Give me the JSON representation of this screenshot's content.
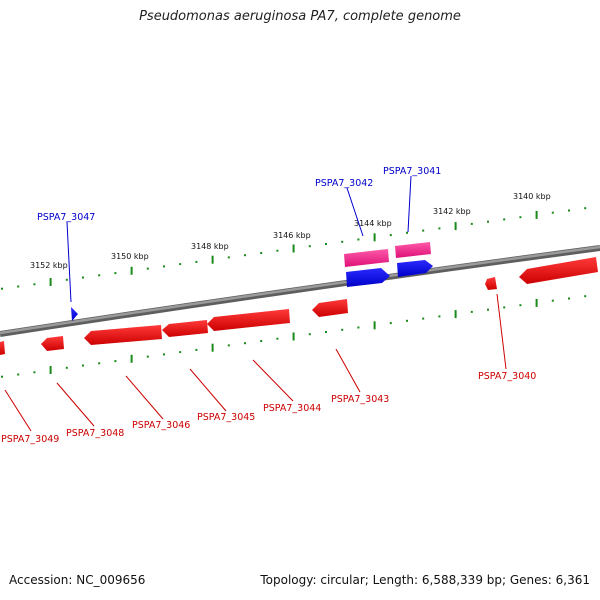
{
  "title": "Pseudomonas aeruginosa PA7, complete genome",
  "accession": "Accession: NC_009656",
  "summary": "Topology: circular; Length: 6,588,339 bp; Genes: 6,361",
  "scale": {
    "labels": [
      "3140 kbp",
      "3142 kbp",
      "3144 kbp",
      "3146 kbp",
      "3148 kbp",
      "3150 kbp",
      "3152 kbp"
    ]
  },
  "genes": [
    {
      "id": "PSPA7_3047",
      "strand": "+",
      "color": "#0000cc"
    },
    {
      "id": "PSPA7_3042",
      "strand": "+",
      "color": "#0000cc"
    },
    {
      "id": "PSPA7_3041",
      "strand": "+",
      "color": "#0000cc"
    },
    {
      "id": "PSPA7_3040",
      "strand": "-",
      "color": "#cc0000"
    },
    {
      "id": "PSPA7_3043",
      "strand": "-",
      "color": "#cc0000"
    },
    {
      "id": "PSPA7_3044",
      "strand": "-",
      "color": "#cc0000"
    },
    {
      "id": "PSPA7_3045",
      "strand": "-",
      "color": "#cc0000"
    },
    {
      "id": "PSPA7_3046",
      "strand": "-",
      "color": "#cc0000"
    },
    {
      "id": "PSPA7_3048",
      "strand": "-",
      "color": "#cc0000"
    },
    {
      "id": "PSPA7_3049",
      "strand": "-",
      "color": "#cc0000"
    }
  ],
  "colors": {
    "forward": "#0000ff",
    "reverse": "#ee0000",
    "rna": "#ee1c84",
    "backbone": "#808080",
    "ticks": "#1a8a1a"
  }
}
